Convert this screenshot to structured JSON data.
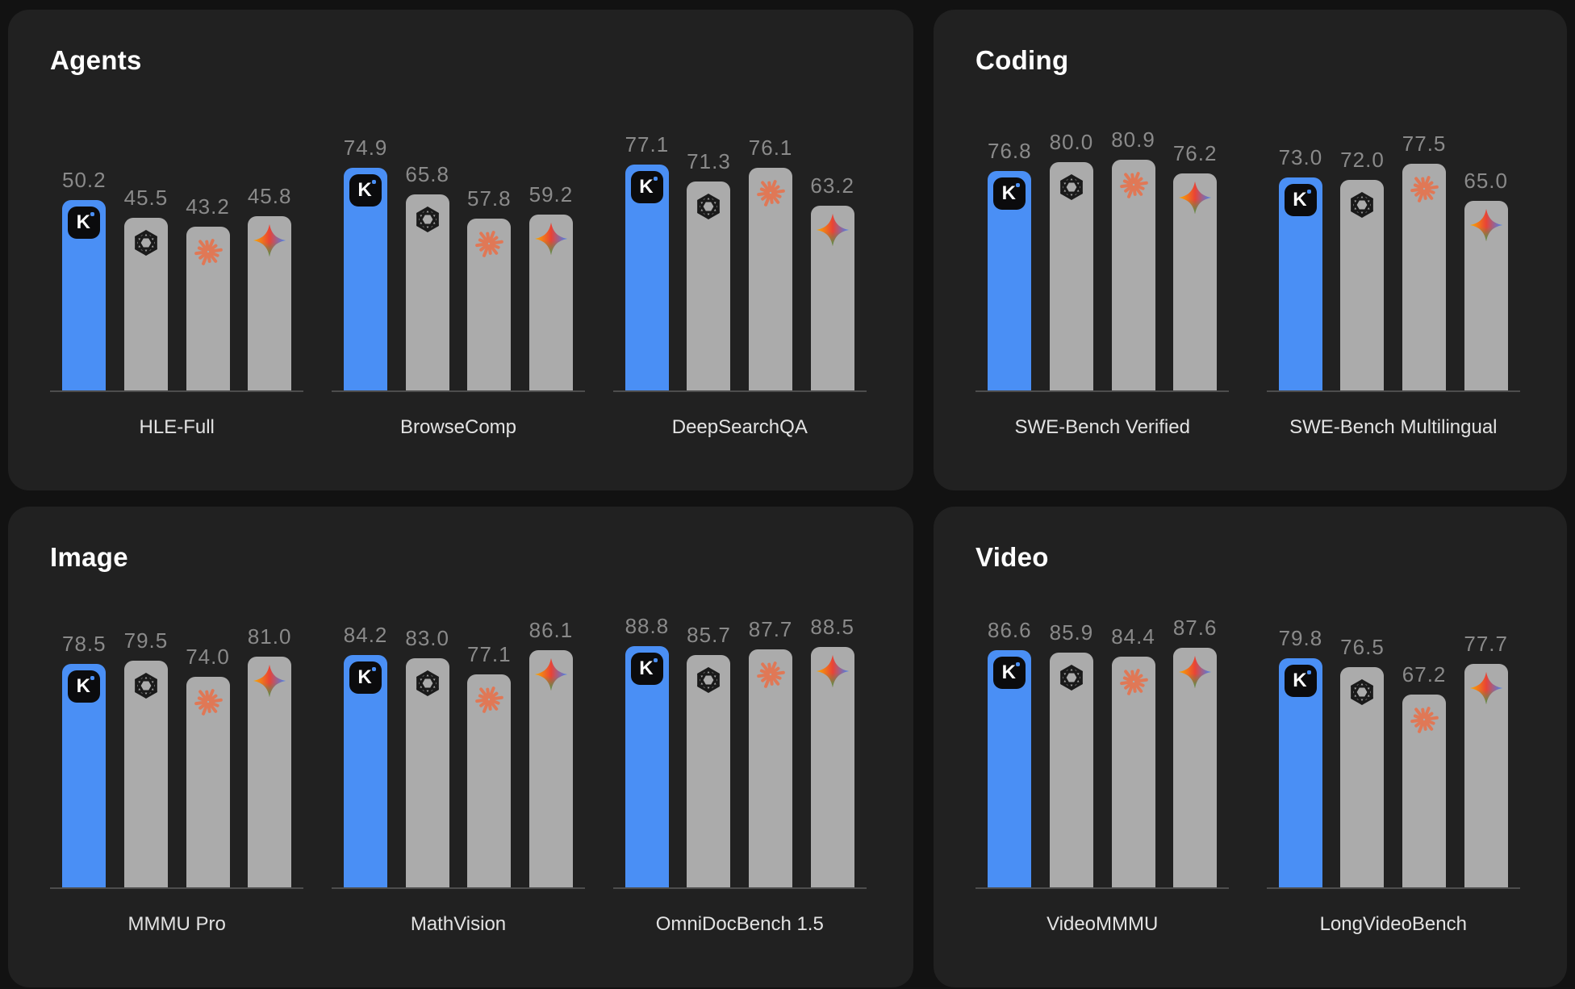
{
  "colors": {
    "page_bg": "#121212",
    "card_bg": "#212121",
    "kimi_blue": "#4A8FF5",
    "bar_gray": "#ABABAB",
    "value_label_gray": "#8A8A8A",
    "benchmark_label": "#E3E3E3",
    "title_white": "#FFFFFF",
    "baseline_gray": "#4D4D4D",
    "claude_coral": "#E07856",
    "openai_dark": "#1A1A1A",
    "gemini_gradient": [
      "#F9AB00",
      "#E94335",
      "#4285F4",
      "#34A853"
    ]
  },
  "kimi_badge": {
    "letter": "K"
  },
  "series": [
    {
      "id": "kimi-k2",
      "icon": "kimi-k-icon",
      "bar_style": "kimi"
    },
    {
      "id": "openai",
      "icon": "openai-icon",
      "bar_style": "gray"
    },
    {
      "id": "claude",
      "icon": "claude-icon",
      "bar_style": "gray"
    },
    {
      "id": "gemini",
      "icon": "gemini-icon",
      "bar_style": "gray"
    }
  ],
  "panels": [
    {
      "title": "Agents",
      "groups": [
        {
          "label": "HLE-Full",
          "values": [
            50.2,
            45.5,
            43.2,
            45.8
          ]
        },
        {
          "label": "BrowseComp",
          "values": [
            74.9,
            65.8,
            57.8,
            59.2
          ]
        },
        {
          "label": "DeepSearchQA",
          "values": [
            77.1,
            71.3,
            76.1,
            63.2
          ]
        }
      ]
    },
    {
      "title": "Coding",
      "groups": [
        {
          "label": "SWE-Bench Verified",
          "values": [
            76.8,
            80.0,
            80.9,
            76.2
          ]
        },
        {
          "label": "SWE-Bench Multilingual",
          "values": [
            73.0,
            72.0,
            77.5,
            65.0
          ]
        }
      ]
    },
    {
      "title": "Image",
      "groups": [
        {
          "label": "MMMU Pro",
          "values": [
            78.5,
            79.5,
            74.0,
            81.0
          ]
        },
        {
          "label": "MathVision",
          "values": [
            84.2,
            83.0,
            77.1,
            86.1
          ]
        },
        {
          "label": "OmniDocBench 1.5",
          "values": [
            88.8,
            85.7,
            87.7,
            88.5
          ]
        }
      ]
    },
    {
      "title": "Video",
      "groups": [
        {
          "label": "VideoMMMU",
          "values": [
            86.6,
            85.9,
            84.4,
            87.6
          ]
        },
        {
          "label": "LongVideoBench",
          "values": [
            79.8,
            76.5,
            67.2,
            77.7
          ]
        }
      ]
    }
  ],
  "chart_data": [
    {
      "type": "bar",
      "title": "Agents",
      "categories": [
        "HLE-Full",
        "BrowseComp",
        "DeepSearchQA"
      ],
      "series": [
        {
          "icon": "kimi-k-icon",
          "color": "#4A8FF5",
          "values": [
            50.2,
            74.9,
            77.1
          ]
        },
        {
          "icon": "openai-icon",
          "color": "#ABABAB",
          "values": [
            45.5,
            65.8,
            71.3
          ]
        },
        {
          "icon": "claude-icon",
          "color": "#ABABAB",
          "values": [
            43.2,
            57.8,
            76.1
          ]
        },
        {
          "icon": "gemini-icon",
          "color": "#ABABAB",
          "values": [
            45.8,
            59.2,
            63.2
          ]
        }
      ],
      "value_labels_shown": true,
      "grid": false,
      "legend": "icons-on-bars"
    },
    {
      "type": "bar",
      "title": "Coding",
      "categories": [
        "SWE-Bench Verified",
        "SWE-Bench Multilingual"
      ],
      "series": [
        {
          "icon": "kimi-k-icon",
          "color": "#4A8FF5",
          "values": [
            76.8,
            73.0
          ]
        },
        {
          "icon": "openai-icon",
          "color": "#ABABAB",
          "values": [
            80.0,
            72.0
          ]
        },
        {
          "icon": "claude-icon",
          "color": "#ABABAB",
          "values": [
            80.9,
            77.5
          ]
        },
        {
          "icon": "gemini-icon",
          "color": "#ABABAB",
          "values": [
            76.2,
            65.0
          ]
        }
      ],
      "value_labels_shown": true,
      "grid": false,
      "legend": "icons-on-bars"
    },
    {
      "type": "bar",
      "title": "Image",
      "categories": [
        "MMMU Pro",
        "MathVision",
        "OmniDocBench 1.5"
      ],
      "series": [
        {
          "icon": "kimi-k-icon",
          "color": "#4A8FF5",
          "values": [
            78.5,
            84.2,
            88.8
          ]
        },
        {
          "icon": "openai-icon",
          "color": "#ABABAB",
          "values": [
            79.5,
            83.0,
            85.7
          ]
        },
        {
          "icon": "claude-icon",
          "color": "#ABABAB",
          "values": [
            74.0,
            77.1,
            87.7
          ]
        },
        {
          "icon": "gemini-icon",
          "color": "#ABABAB",
          "values": [
            81.0,
            86.1,
            88.5
          ]
        }
      ],
      "value_labels_shown": true,
      "grid": false,
      "legend": "icons-on-bars"
    },
    {
      "type": "bar",
      "title": "Video",
      "categories": [
        "VideoMMMU",
        "LongVideoBench"
      ],
      "series": [
        {
          "icon": "kimi-k-icon",
          "color": "#4A8FF5",
          "values": [
            86.6,
            79.8
          ]
        },
        {
          "icon": "openai-icon",
          "color": "#ABABAB",
          "values": [
            85.9,
            76.5
          ]
        },
        {
          "icon": "claude-icon",
          "color": "#ABABAB",
          "values": [
            84.4,
            67.2
          ]
        },
        {
          "icon": "gemini-icon",
          "color": "#ABABAB",
          "values": [
            87.6,
            77.7
          ]
        }
      ],
      "value_labels_shown": true,
      "grid": false,
      "legend": "icons-on-bars"
    }
  ]
}
